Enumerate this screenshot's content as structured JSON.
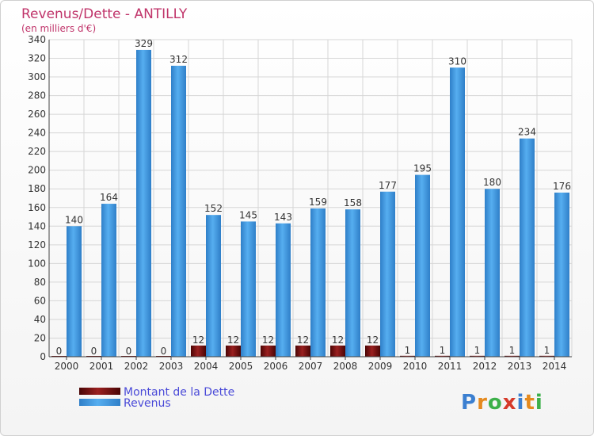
{
  "chart_data": {
    "type": "bar",
    "title": "Revenus/Dette - ANTILLY",
    "subtitle": "(en milliers d'€)",
    "categories": [
      "2000",
      "2001",
      "2002",
      "2003",
      "2004",
      "2005",
      "2006",
      "2007",
      "2008",
      "2009",
      "2010",
      "2011",
      "2012",
      "2013",
      "2014"
    ],
    "series": [
      {
        "name": "Montant de la Dette",
        "color": "#6b0a0a",
        "values": [
          0,
          0,
          0,
          0,
          12,
          12,
          12,
          12,
          12,
          12,
          1,
          1,
          1,
          1,
          1
        ]
      },
      {
        "name": "Revenus",
        "color": "#4aa0e4",
        "values": [
          140,
          164,
          329,
          312,
          152,
          145,
          143,
          159,
          158,
          177,
          195,
          310,
          180,
          234,
          176
        ]
      }
    ],
    "ylim": [
      0,
      340
    ],
    "yticks": [
      0,
      20,
      40,
      60,
      80,
      100,
      120,
      140,
      160,
      180,
      200,
      220,
      240,
      260,
      280,
      300,
      320,
      340
    ],
    "grid": true,
    "legend_position": "bottom-left"
  },
  "logo": {
    "text": "Proxiti"
  }
}
